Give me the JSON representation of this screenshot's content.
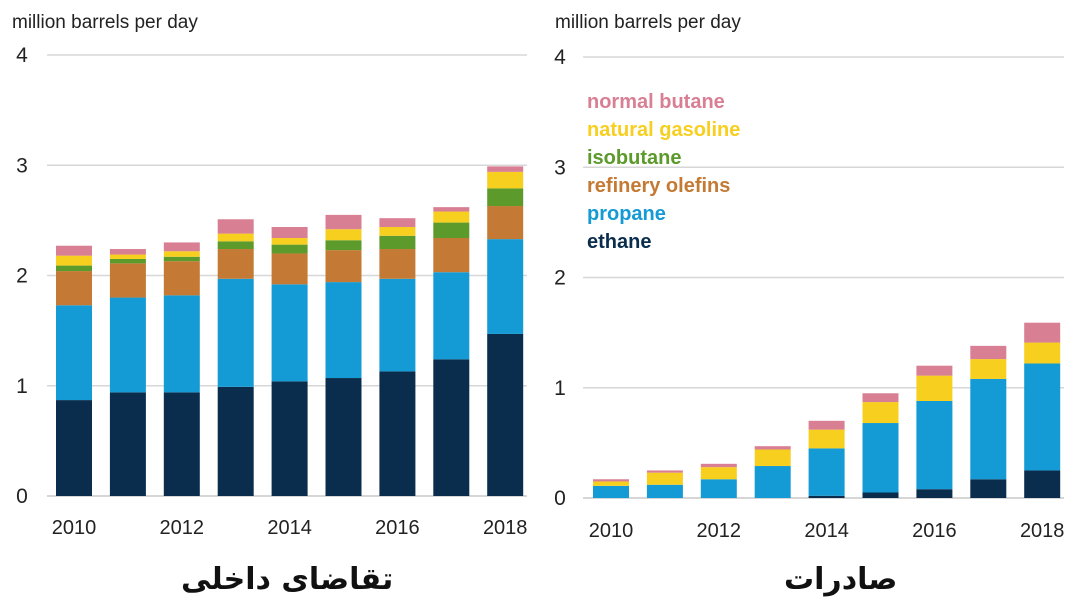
{
  "colors": {
    "normal_butane": "#d97f93",
    "natural_gasoline": "#f7cf1f",
    "isobutane": "#5c9a2b",
    "refinery_olefins": "#c47a34",
    "propane": "#149ad4",
    "ethane": "#0b2d4d",
    "grid": "#d7d7d7"
  },
  "chart_data": [
    {
      "type": "bar",
      "stacked": true,
      "title": "تقاضای داخلی",
      "ylabel": "million barrels per day",
      "ylim": [
        0,
        4
      ],
      "yticks": [
        "0",
        "1",
        "2",
        "3",
        "4"
      ],
      "categories": [
        "2010",
        "2011",
        "2012",
        "2013",
        "2014",
        "2015",
        "2016",
        "2017",
        "2018"
      ],
      "xtick_labels": [
        "2010",
        "2012",
        "2014",
        "2016",
        "2018"
      ],
      "grid": true,
      "legend": "none",
      "series": [
        {
          "key": "ethane",
          "values": [
            0.87,
            0.94,
            0.94,
            0.99,
            1.04,
            1.07,
            1.13,
            1.24,
            1.47
          ]
        },
        {
          "key": "propane",
          "values": [
            0.86,
            0.86,
            0.88,
            0.98,
            0.88,
            0.87,
            0.84,
            0.79,
            0.86
          ]
        },
        {
          "key": "refinery_olefins",
          "values": [
            0.31,
            0.31,
            0.31,
            0.27,
            0.28,
            0.29,
            0.27,
            0.31,
            0.3
          ]
        },
        {
          "key": "isobutane",
          "values": [
            0.05,
            0.04,
            0.04,
            0.07,
            0.08,
            0.09,
            0.12,
            0.14,
            0.16
          ]
        },
        {
          "key": "natural_gasoline",
          "values": [
            0.09,
            0.04,
            0.05,
            0.07,
            0.06,
            0.1,
            0.08,
            0.1,
            0.15
          ]
        },
        {
          "key": "normal_butane",
          "values": [
            0.09,
            0.05,
            0.08,
            0.13,
            0.1,
            0.13,
            0.08,
            0.04,
            0.05
          ]
        }
      ]
    },
    {
      "type": "bar",
      "stacked": true,
      "title": "صادرات",
      "ylabel": "million barrels per day",
      "ylim": [
        0,
        4
      ],
      "yticks": [
        "0",
        "1",
        "2",
        "3",
        "4"
      ],
      "categories": [
        "2010",
        "2011",
        "2012",
        "2013",
        "2014",
        "2015",
        "2016",
        "2017",
        "2018"
      ],
      "xtick_labels": [
        "2010",
        "2012",
        "2014",
        "2016",
        "2018"
      ],
      "grid": true,
      "legend": "top-left",
      "series": [
        {
          "key": "ethane",
          "values": [
            0.0,
            0.0,
            0.0,
            0.0,
            0.02,
            0.05,
            0.08,
            0.17,
            0.25
          ]
        },
        {
          "key": "propane",
          "values": [
            0.11,
            0.12,
            0.17,
            0.29,
            0.43,
            0.63,
            0.8,
            0.91,
            0.97
          ]
        },
        {
          "key": "refinery_olefins",
          "values": [
            0.0,
            0.0,
            0.0,
            0.0,
            0.0,
            0.0,
            0.0,
            0.0,
            0.0
          ]
        },
        {
          "key": "isobutane",
          "values": [
            0.0,
            0.0,
            0.0,
            0.0,
            0.0,
            0.0,
            0.0,
            0.0,
            0.0
          ]
        },
        {
          "key": "natural_gasoline",
          "values": [
            0.04,
            0.11,
            0.11,
            0.15,
            0.17,
            0.19,
            0.23,
            0.18,
            0.19
          ]
        },
        {
          "key": "normal_butane",
          "values": [
            0.02,
            0.02,
            0.03,
            0.03,
            0.08,
            0.08,
            0.09,
            0.12,
            0.18
          ]
        }
      ]
    }
  ],
  "legend": [
    {
      "key": "normal_butane",
      "label": "normal butane"
    },
    {
      "key": "natural_gasoline",
      "label": "natural gasoline"
    },
    {
      "key": "isobutane",
      "label": "isobutane"
    },
    {
      "key": "refinery_olefins",
      "label": "refinery olefins"
    },
    {
      "key": "propane",
      "label": "propane"
    },
    {
      "key": "ethane",
      "label": "ethane"
    }
  ]
}
